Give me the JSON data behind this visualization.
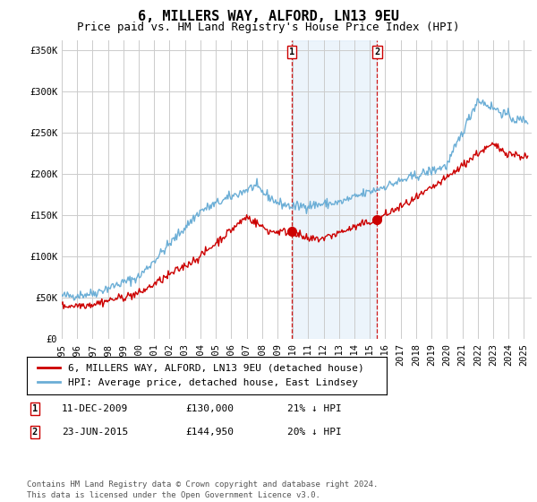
{
  "title": "6, MILLERS WAY, ALFORD, LN13 9EU",
  "subtitle": "Price paid vs. HM Land Registry's House Price Index (HPI)",
  "ylabel_ticks": [
    "£0",
    "£50K",
    "£100K",
    "£150K",
    "£200K",
    "£250K",
    "£300K",
    "£350K"
  ],
  "ytick_values": [
    0,
    50000,
    100000,
    150000,
    200000,
    250000,
    300000,
    350000
  ],
  "ylim": [
    0,
    362000
  ],
  "xlim_start": 1995.0,
  "xlim_end": 2025.5,
  "purchase1": {
    "date_num": 2009.94,
    "price": 130000,
    "label": "1",
    "date_str": "11-DEC-2009",
    "pct": "21% ↓ HPI"
  },
  "purchase2": {
    "date_num": 2015.47,
    "price": 144950,
    "label": "2",
    "date_str": "23-JUN-2015",
    "pct": "20% ↓ HPI"
  },
  "hpi_line_color": "#6baed6",
  "price_line_color": "#cc0000",
  "vline_color": "#cc0000",
  "shade_color": "#d0e4f7",
  "shade_alpha": 0.4,
  "legend_label_red": "6, MILLERS WAY, ALFORD, LN13 9EU (detached house)",
  "legend_label_blue": "HPI: Average price, detached house, East Lindsey",
  "footer": "Contains HM Land Registry data © Crown copyright and database right 2024.\nThis data is licensed under the Open Government Licence v3.0.",
  "table_rows": [
    [
      "1",
      "11-DEC-2009",
      "£130,000",
      "21% ↓ HPI"
    ],
    [
      "2",
      "23-JUN-2015",
      "£144,950",
      "20% ↓ HPI"
    ]
  ],
  "bg_color": "#ffffff",
  "grid_color": "#cccccc",
  "title_fontsize": 11,
  "subtitle_fontsize": 9,
  "tick_fontsize": 7.5,
  "legend_fontsize": 8,
  "footer_fontsize": 6.5
}
